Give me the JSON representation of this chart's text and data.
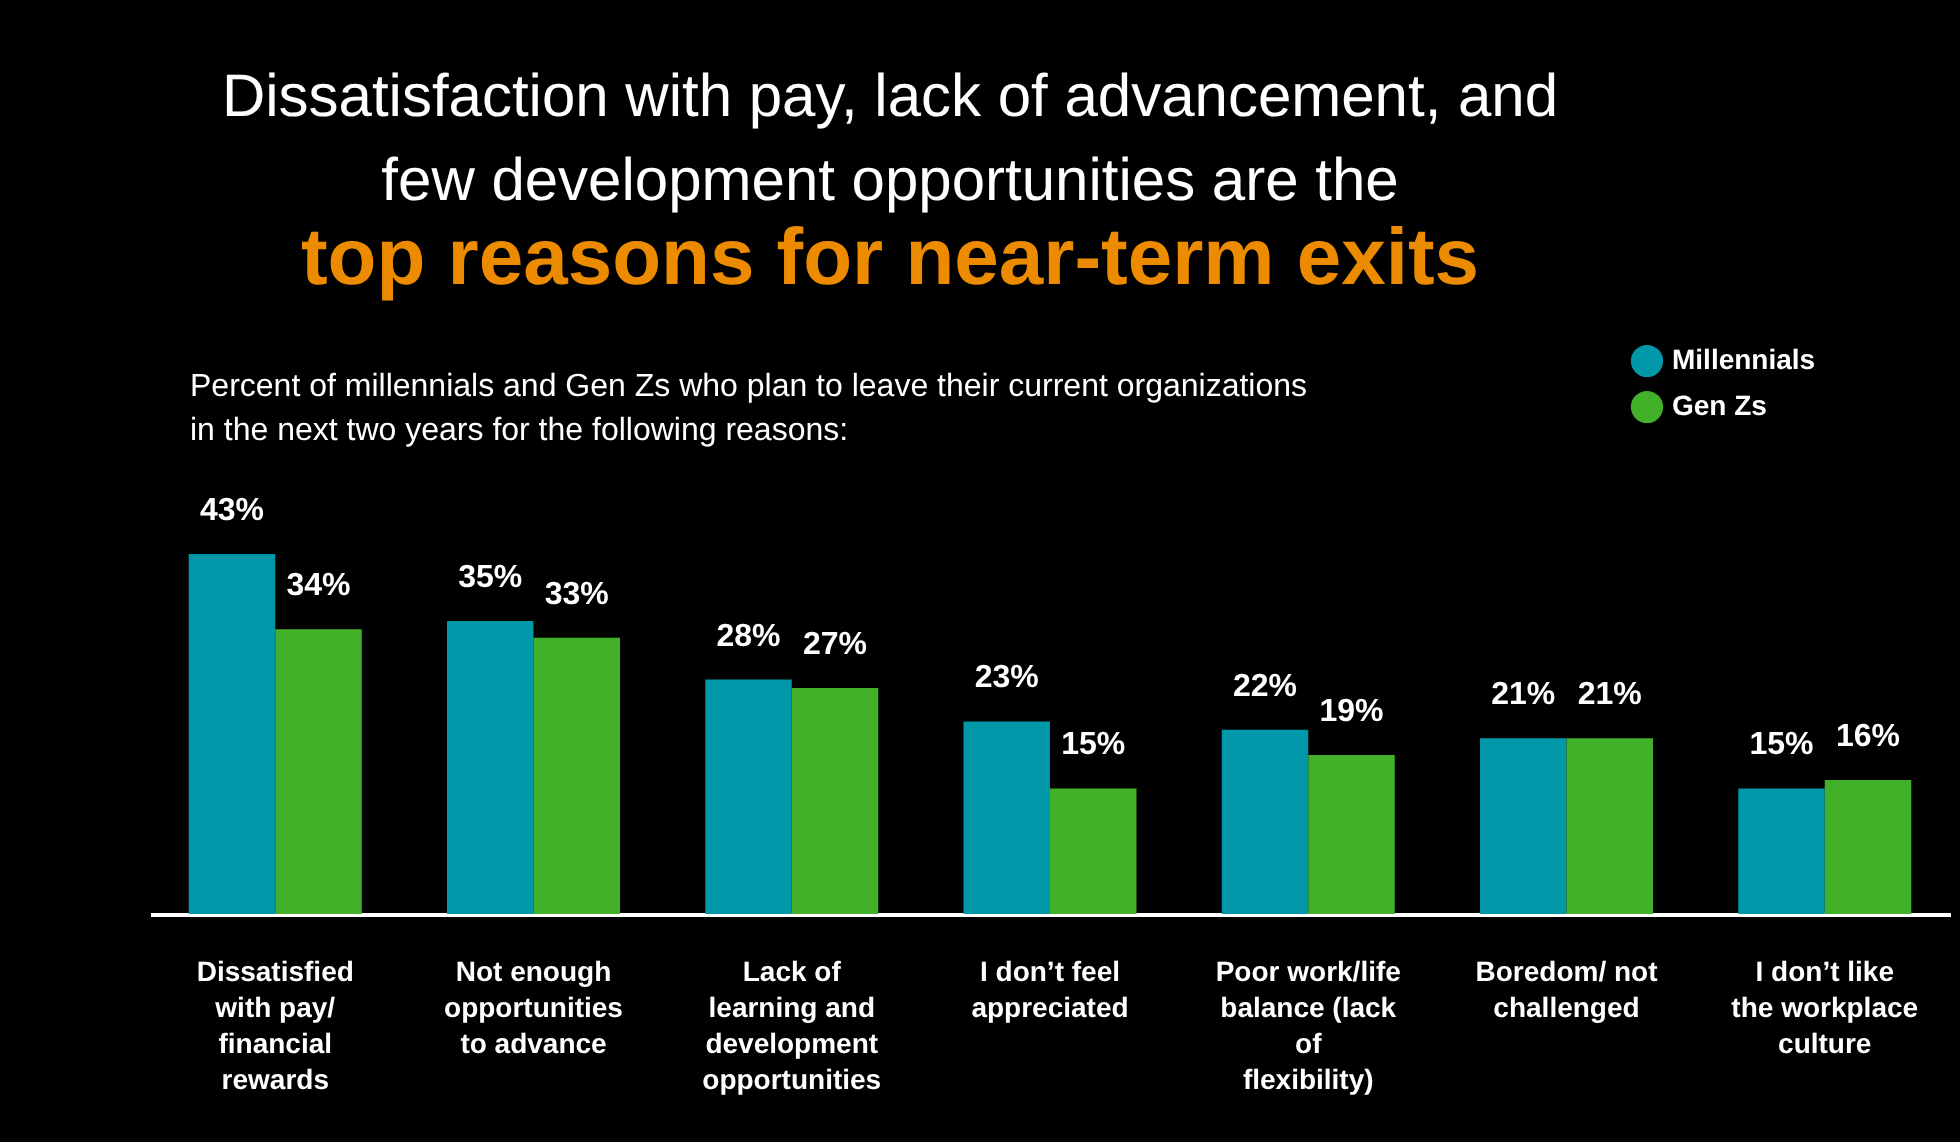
{
  "chart_data": {
    "type": "bar",
    "title": "Dissatisfaction with pay, lack of advancement, and few development opportunities are the",
    "subtitle": "top reasons for near-term exits",
    "annotations": [
      "Percent of millennials and Gen Zs who plan to leave their current organizations in the next two years for the following reasons:"
    ],
    "categories": [
      "Dissatisfied with pay/ financial rewards",
      "Not enough opportunities to advance",
      "Lack of learning and development opportunities",
      "I don’t feel appreciated",
      "Poor work/life balance (lack of flexibility)",
      "Boredom/ not challenged",
      "I don’t like the workplace culture"
    ],
    "series": [
      {
        "name": "Millennials",
        "color": "#0097a9",
        "values": [
          43,
          35,
          28,
          23,
          22,
          21,
          15
        ],
        "value_labels": [
          "43%",
          "35%",
          "28%",
          "23%",
          "22%",
          "21%",
          "15%"
        ]
      },
      {
        "name": "Gen Zs",
        "color": "#43b02a",
        "values": [
          34,
          33,
          27,
          15,
          19,
          21,
          16
        ],
        "value_labels": [
          "34%",
          "33%",
          "27%",
          "15%",
          "19%",
          "21%",
          "16%"
        ]
      }
    ],
    "legend": "top right",
    "grid": false
  }
}
